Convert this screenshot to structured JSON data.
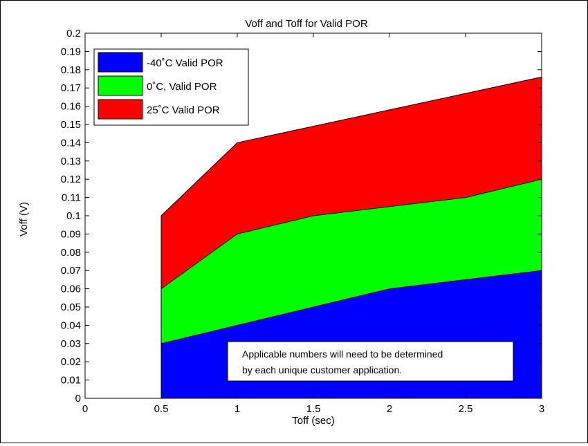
{
  "chart_data": {
    "type": "area",
    "title": "Voff and Toff for Valid POR",
    "xlabel": "Toff (sec)",
    "ylabel": "Voff (V)",
    "xlim": [
      0,
      3
    ],
    "ylim": [
      0,
      0.2
    ],
    "x_ticks": [
      "0",
      "0.5",
      "1",
      "1.5",
      "2",
      "2.5",
      "3"
    ],
    "y_ticks": [
      "0",
      "0.01",
      "0.02",
      "0.03",
      "0.04",
      "0.05",
      "0.06",
      "0.07",
      "0.08",
      "0.09",
      "0.1",
      "0.11",
      "0.12",
      "0.13",
      "0.14",
      "0.15",
      "0.16",
      "0.17",
      "0.18",
      "0.19",
      "0.2"
    ],
    "grid": false,
    "legend_position": "top-left",
    "x": [
      0.5,
      1,
      1.5,
      2,
      2.5,
      3
    ],
    "series": [
      {
        "name": "-40˚C Valid POR",
        "color": "#0000ff",
        "values": [
          0.03,
          0.04,
          0.05,
          0.06,
          0.065,
          0.07
        ]
      },
      {
        "name": "0˚C, Valid POR",
        "color": "#00ff00",
        "values": [
          0.06,
          0.09,
          0.1,
          0.105,
          0.11,
          0.12
        ]
      },
      {
        "name": "25˚C Valid POR",
        "color": "#ff0000",
        "values": [
          0.1,
          0.14,
          0.149,
          0.158,
          0.167,
          0.176
        ]
      }
    ],
    "annotation": {
      "line1": "Applicable numbers will need to be determined",
      "line2": "by each unique customer application."
    }
  }
}
